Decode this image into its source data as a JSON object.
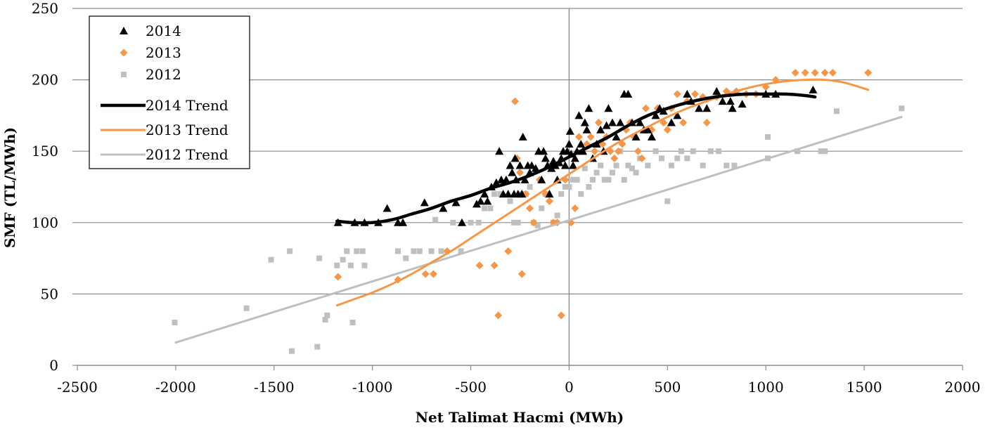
{
  "chart_data": {
    "type": "scatter",
    "title": "",
    "xlabel": "Net Talimat Hacmi (MWh)",
    "ylabel": "SMF (TL/MWh)",
    "xlim": [
      -2500,
      2000
    ],
    "ylim": [
      0,
      250
    ],
    "x_ticks": [
      "-2500",
      "-2000",
      "-1500",
      "-1000",
      "-500",
      "0",
      "500",
      "1000",
      "1500",
      "2000"
    ],
    "y_ticks": [
      "0",
      "50",
      "100",
      "150",
      "200",
      "250"
    ],
    "grid": "horizontal major gridlines",
    "legend_position": "top-left",
    "colors": {
      "s2014": "#000000",
      "s2013": "#f79646",
      "s2012": "#bfbfbf",
      "grid": "#8c8c8c"
    },
    "series": [
      {
        "name": "2014",
        "kind": "scatter",
        "marker": "triangle",
        "color": "#000000",
        "points": [
          [
            -1175,
            100
          ],
          [
            -1090,
            100
          ],
          [
            -1040,
            100
          ],
          [
            -970,
            100
          ],
          [
            -925,
            110
          ],
          [
            -870,
            100
          ],
          [
            -845,
            100
          ],
          [
            -735,
            114
          ],
          [
            -640,
            110
          ],
          [
            -575,
            114
          ],
          [
            -545,
            100
          ],
          [
            -470,
            113
          ],
          [
            -450,
            115
          ],
          [
            -430,
            120
          ],
          [
            -415,
            115
          ],
          [
            -395,
            125
          ],
          [
            -370,
            128
          ],
          [
            -355,
            150
          ],
          [
            -345,
            130
          ],
          [
            -335,
            120
          ],
          [
            -320,
            130
          ],
          [
            -310,
            120
          ],
          [
            -300,
            140
          ],
          [
            -290,
            135
          ],
          [
            -280,
            120
          ],
          [
            -275,
            145
          ],
          [
            -270,
            130
          ],
          [
            -260,
            120
          ],
          [
            -250,
            140
          ],
          [
            -240,
            120
          ],
          [
            -235,
            160
          ],
          [
            -225,
            130
          ],
          [
            -210,
            140
          ],
          [
            -200,
            135
          ],
          [
            -190,
            140
          ],
          [
            -170,
            138
          ],
          [
            -155,
            150
          ],
          [
            -140,
            130
          ],
          [
            -130,
            150
          ],
          [
            -120,
            145
          ],
          [
            -110,
            140
          ],
          [
            -100,
            120
          ],
          [
            -90,
            138
          ],
          [
            -80,
            143
          ],
          [
            -70,
            140
          ],
          [
            -60,
            130
          ],
          [
            -50,
            142
          ],
          [
            -40,
            145
          ],
          [
            -30,
            150
          ],
          [
            -20,
            140
          ],
          [
            -10,
            150
          ],
          [
            0,
            155
          ],
          [
            5,
            164
          ],
          [
            10,
            148
          ],
          [
            20,
            140
          ],
          [
            30,
            145
          ],
          [
            40,
            150
          ],
          [
            50,
            175
          ],
          [
            60,
            155
          ],
          [
            70,
            150
          ],
          [
            80,
            170
          ],
          [
            90,
            165
          ],
          [
            100,
            180
          ],
          [
            120,
            145
          ],
          [
            140,
            155
          ],
          [
            160,
            165
          ],
          [
            175,
            150
          ],
          [
            190,
            168
          ],
          [
            200,
            180
          ],
          [
            220,
            170
          ],
          [
            240,
            160
          ],
          [
            260,
            170
          ],
          [
            280,
            190
          ],
          [
            300,
            190
          ],
          [
            320,
            170
          ],
          [
            340,
            160
          ],
          [
            360,
            170
          ],
          [
            380,
            165
          ],
          [
            400,
            165
          ],
          [
            420,
            160
          ],
          [
            440,
            175
          ],
          [
            460,
            180
          ],
          [
            480,
            178
          ],
          [
            520,
            170
          ],
          [
            550,
            175
          ],
          [
            600,
            190
          ],
          [
            620,
            185
          ],
          [
            660,
            180
          ],
          [
            700,
            180
          ],
          [
            750,
            192
          ],
          [
            780,
            185
          ],
          [
            820,
            185
          ],
          [
            830,
            180
          ],
          [
            880,
            183
          ],
          [
            1000,
            190
          ],
          [
            1050,
            190
          ],
          [
            1240,
            193
          ]
        ]
      },
      {
        "name": "2013",
        "kind": "scatter",
        "marker": "diamond",
        "color": "#f79646",
        "points": [
          [
            -1175,
            62
          ],
          [
            -870,
            60
          ],
          [
            -730,
            64
          ],
          [
            -690,
            64
          ],
          [
            -620,
            80
          ],
          [
            -455,
            70
          ],
          [
            -380,
            70
          ],
          [
            -360,
            35
          ],
          [
            -310,
            80
          ],
          [
            -275,
            185
          ],
          [
            -265,
            145
          ],
          [
            -250,
            135
          ],
          [
            -240,
            64
          ],
          [
            -220,
            120
          ],
          [
            -200,
            110
          ],
          [
            -180,
            100
          ],
          [
            -150,
            130
          ],
          [
            -120,
            120
          ],
          [
            -100,
            115
          ],
          [
            -80,
            100
          ],
          [
            -60,
            100
          ],
          [
            -40,
            35
          ],
          [
            -20,
            130
          ],
          [
            10,
            100
          ],
          [
            30,
            110
          ],
          [
            50,
            160
          ],
          [
            70,
            150
          ],
          [
            90,
            155
          ],
          [
            110,
            160
          ],
          [
            130,
            150
          ],
          [
            150,
            170
          ],
          [
            170,
            155
          ],
          [
            190,
            160
          ],
          [
            210,
            150
          ],
          [
            230,
            145
          ],
          [
            250,
            150
          ],
          [
            270,
            155
          ],
          [
            290,
            165
          ],
          [
            310,
            170
          ],
          [
            330,
            160
          ],
          [
            350,
            150
          ],
          [
            370,
            145
          ],
          [
            390,
            180
          ],
          [
            420,
            165
          ],
          [
            450,
            180
          ],
          [
            480,
            170
          ],
          [
            500,
            165
          ],
          [
            520,
            180
          ],
          [
            550,
            190
          ],
          [
            580,
            170
          ],
          [
            600,
            185
          ],
          [
            640,
            190
          ],
          [
            680,
            188
          ],
          [
            700,
            170
          ],
          [
            750,
            188
          ],
          [
            800,
            192
          ],
          [
            850,
            192
          ],
          [
            900,
            190
          ],
          [
            950,
            190
          ],
          [
            1000,
            195
          ],
          [
            1050,
            200
          ],
          [
            1150,
            205
          ],
          [
            1200,
            205
          ],
          [
            1250,
            205
          ],
          [
            1300,
            205
          ],
          [
            1340,
            205
          ],
          [
            1520,
            205
          ]
        ]
      },
      {
        "name": "2012",
        "kind": "scatter",
        "marker": "square",
        "color": "#bfbfbf",
        "points": [
          [
            -2005,
            30
          ],
          [
            -1640,
            40
          ],
          [
            -1515,
            74
          ],
          [
            -1420,
            80
          ],
          [
            -1410,
            10
          ],
          [
            -1280,
            13
          ],
          [
            -1270,
            75
          ],
          [
            -1240,
            32
          ],
          [
            -1230,
            35
          ],
          [
            -1180,
            70
          ],
          [
            -1150,
            74
          ],
          [
            -1130,
            80
          ],
          [
            -1110,
            70
          ],
          [
            -1100,
            30
          ],
          [
            -1080,
            80
          ],
          [
            -1050,
            80
          ],
          [
            -1040,
            70
          ],
          [
            -870,
            80
          ],
          [
            -830,
            75
          ],
          [
            -790,
            80
          ],
          [
            -760,
            80
          ],
          [
            -700,
            80
          ],
          [
            -680,
            102
          ],
          [
            -650,
            80
          ],
          [
            -590,
            100
          ],
          [
            -550,
            80
          ],
          [
            -500,
            100
          ],
          [
            -460,
            100
          ],
          [
            -430,
            110
          ],
          [
            -400,
            110
          ],
          [
            -380,
            120
          ],
          [
            -350,
            120
          ],
          [
            -300,
            115
          ],
          [
            -280,
            100
          ],
          [
            -260,
            100
          ],
          [
            -240,
            120
          ],
          [
            -220,
            120
          ],
          [
            -200,
            125
          ],
          [
            -180,
            100
          ],
          [
            -160,
            98
          ],
          [
            -140,
            110
          ],
          [
            -120,
            120
          ],
          [
            -100,
            140
          ],
          [
            -80,
            100
          ],
          [
            -60,
            105
          ],
          [
            -40,
            120
          ],
          [
            -20,
            125
          ],
          [
            0,
            125
          ],
          [
            20,
            130
          ],
          [
            40,
            130
          ],
          [
            60,
            120
          ],
          [
            80,
            138
          ],
          [
            100,
            125
          ],
          [
            120,
            130
          ],
          [
            140,
            135
          ],
          [
            160,
            140
          ],
          [
            180,
            130
          ],
          [
            200,
            130
          ],
          [
            220,
            135
          ],
          [
            240,
            140
          ],
          [
            260,
            150
          ],
          [
            280,
            130
          ],
          [
            300,
            140
          ],
          [
            320,
            138
          ],
          [
            340,
            135
          ],
          [
            360,
            145
          ],
          [
            400,
            140
          ],
          [
            440,
            150
          ],
          [
            470,
            145
          ],
          [
            500,
            115
          ],
          [
            520,
            140
          ],
          [
            550,
            145
          ],
          [
            570,
            150
          ],
          [
            600,
            145
          ],
          [
            630,
            150
          ],
          [
            680,
            140
          ],
          [
            720,
            150
          ],
          [
            760,
            150
          ],
          [
            800,
            140
          ],
          [
            840,
            140
          ],
          [
            1010,
            145
          ],
          [
            1010,
            160
          ],
          [
            1160,
            150
          ],
          [
            1280,
            150
          ],
          [
            1300,
            150
          ],
          [
            1360,
            178
          ],
          [
            1690,
            180
          ]
        ]
      },
      {
        "name": "2014 Trend",
        "kind": "line",
        "color": "#000000",
        "x": [
          -1180,
          -1100,
          -1000,
          -900,
          -800,
          -700,
          -600,
          -500,
          -400,
          -300,
          -200,
          -100,
          0,
          100,
          200,
          300,
          400,
          500,
          600,
          700,
          800,
          900,
          1000,
          1100,
          1200,
          1250
        ],
        "y": [
          101,
          100,
          100,
          102,
          106,
          110,
          115,
          119,
          124,
          128,
          133,
          139,
          146,
          153,
          160,
          168,
          175,
          180,
          184,
          187,
          189,
          190,
          190,
          190,
          189,
          188
        ]
      },
      {
        "name": "2013 Trend",
        "kind": "line",
        "color": "#f79646",
        "x": [
          -1180,
          -1100,
          -1000,
          -900,
          -800,
          -700,
          -600,
          -500,
          -400,
          -300,
          -200,
          -100,
          0,
          100,
          200,
          300,
          400,
          500,
          600,
          700,
          800,
          900,
          1000,
          1100,
          1200,
          1300,
          1400,
          1520
        ],
        "y": [
          42,
          46,
          51,
          57,
          64,
          72,
          80,
          89,
          98,
          107,
          116,
          125,
          134,
          143,
          152,
          160,
          167,
          174,
          180,
          185,
          190,
          194,
          197,
          199,
          200,
          200,
          198,
          193
        ]
      },
      {
        "name": "2012 Trend",
        "kind": "line",
        "color": "#bfbfbf",
        "x": [
          -2000,
          1690
        ],
        "y": [
          16,
          174
        ]
      }
    ]
  }
}
